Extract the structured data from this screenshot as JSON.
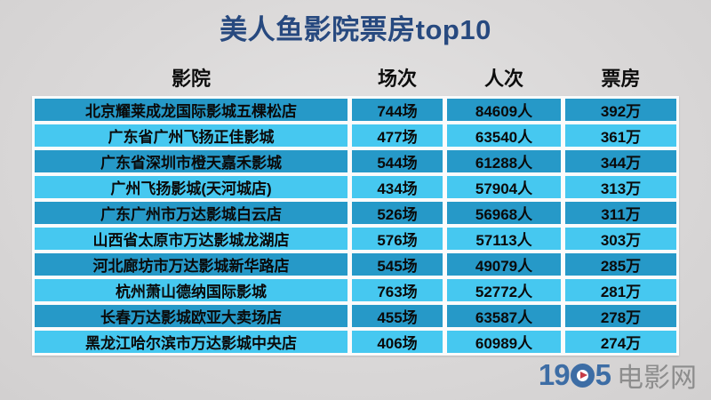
{
  "title": "美人鱼影院票房top10",
  "table": {
    "headers": [
      "影院",
      "场次",
      "人次",
      "票房"
    ],
    "rows": [
      {
        "cinema": "北京耀莱成龙国际影城五棵松店",
        "sessions": "744场",
        "admissions": "84609人",
        "boxoffice": "392万"
      },
      {
        "cinema": "广东省广州飞扬正佳影城",
        "sessions": "477场",
        "admissions": "63540人",
        "boxoffice": "361万"
      },
      {
        "cinema": "广东省深圳市橙天嘉禾影城",
        "sessions": "544场",
        "admissions": "61288人",
        "boxoffice": "344万"
      },
      {
        "cinema": "广州飞扬影城(天河城店)",
        "sessions": "434场",
        "admissions": "57904人",
        "boxoffice": "313万"
      },
      {
        "cinema": "广东广州市万达影城白云店",
        "sessions": "526场",
        "admissions": "56968人",
        "boxoffice": "311万"
      },
      {
        "cinema": "山西省太原市万达影城龙湖店",
        "sessions": "576场",
        "admissions": "57113人",
        "boxoffice": "303万"
      },
      {
        "cinema": "河北廊坊市万达影城新华路店",
        "sessions": "545场",
        "admissions": "49079人",
        "boxoffice": "285万"
      },
      {
        "cinema": "杭州萧山德纳国际影城",
        "sessions": "763场",
        "admissions": "52772人",
        "boxoffice": "281万"
      },
      {
        "cinema": "长春万达影城欧亚大卖场店",
        "sessions": "455场",
        "admissions": "63587人",
        "boxoffice": "278万"
      },
      {
        "cinema": "黑龙江哈尔滨市万达影城中央店",
        "sessions": "406场",
        "admissions": "60989人",
        "boxoffice": "274万"
      }
    ]
  },
  "chart_data": {
    "type": "table",
    "title": "美人鱼影院票房top10",
    "columns": [
      "影院",
      "场次",
      "人次",
      "票房"
    ],
    "rows": [
      [
        "北京耀莱成龙国际影城五棵松店",
        "744场",
        "84609人",
        "392万"
      ],
      [
        "广东省广州飞扬正佳影城",
        "477场",
        "63540人",
        "361万"
      ],
      [
        "广东省深圳市橙天嘉禾影城",
        "544场",
        "61288人",
        "344万"
      ],
      [
        "广州飞扬影城(天河城店)",
        "434场",
        "57904人",
        "313万"
      ],
      [
        "广东广州市万达影城白云店",
        "526场",
        "56968人",
        "311万"
      ],
      [
        "山西省太原市万达影城龙湖店",
        "576场",
        "57113人",
        "303万"
      ],
      [
        "河北廊坊市万达影城新华路店",
        "545场",
        "49079人",
        "285万"
      ],
      [
        "杭州萧山德纳国际影城",
        "763场",
        "52772人",
        "281万"
      ],
      [
        "长春万达影城欧亚大卖场店",
        "455场",
        "63587人",
        "278万"
      ],
      [
        "黑龙江哈尔滨市万达影城中央店",
        "406场",
        "60989人",
        "274万"
      ]
    ]
  },
  "logo": {
    "number_prefix": "19",
    "number_suffix": "5",
    "site_name": "电影网"
  },
  "colors": {
    "title_color": "#27497f",
    "row_dark": "#2699c8",
    "row_light": "#46c8f0",
    "logo_blue": "#3d6da5",
    "logo_red": "#c63c47",
    "logo_gray": "#8d8d8d"
  }
}
